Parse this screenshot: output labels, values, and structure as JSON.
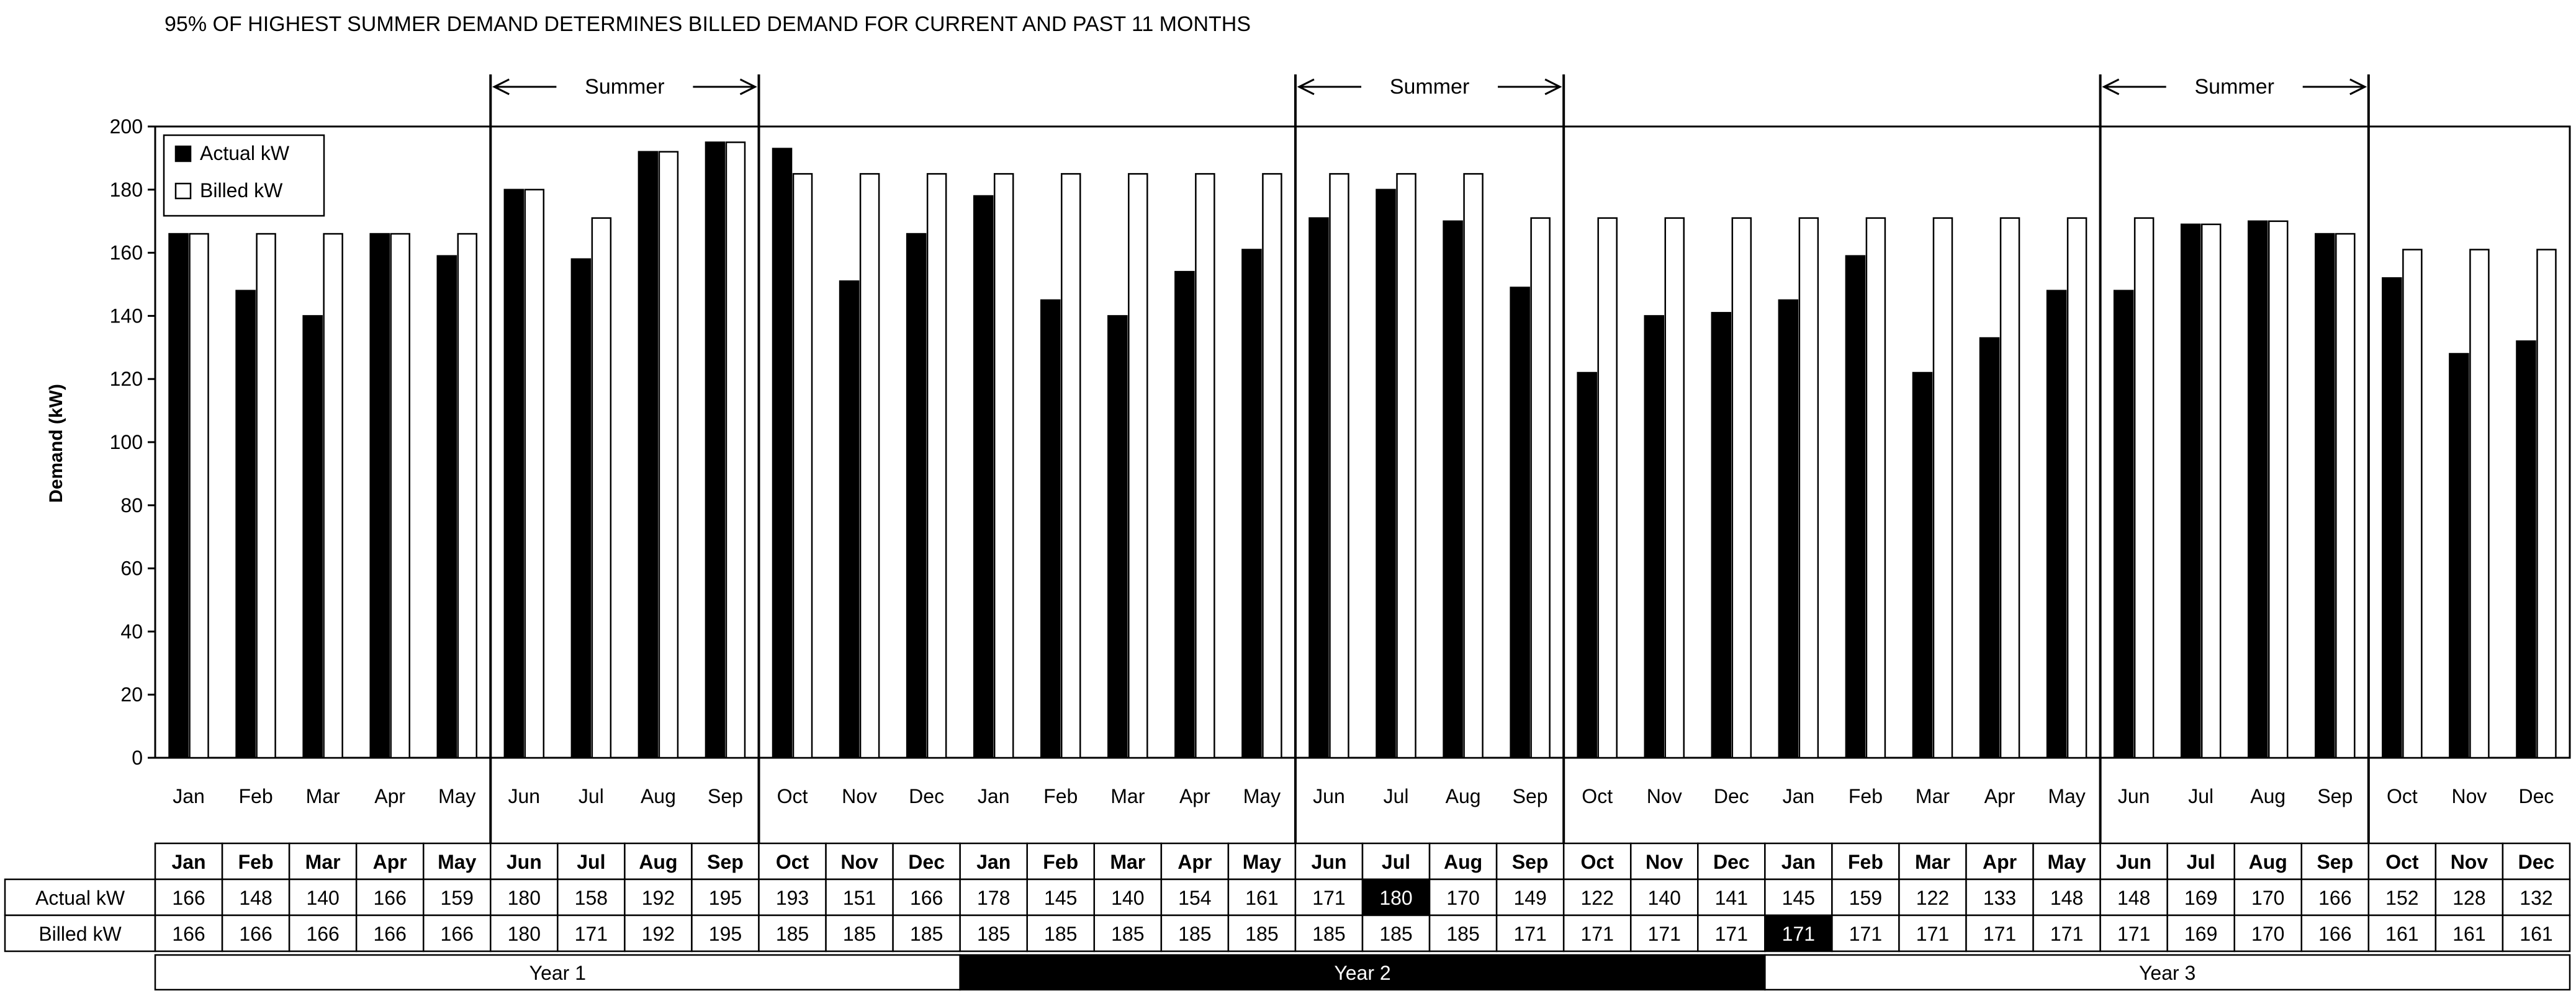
{
  "chart_data": {
    "type": "bar",
    "title": "95% OF HIGHEST SUMMER DEMAND DETERMINES BILLED DEMAND FOR CURRENT AND PAST 11 MONTHS",
    "xlabel": "",
    "ylabel": "Demand (kW)",
    "ylim": [
      0,
      200
    ],
    "yticks": [
      0,
      20,
      40,
      60,
      80,
      100,
      120,
      140,
      160,
      180,
      200
    ],
    "categories": [
      "Jan",
      "Feb",
      "Mar",
      "Apr",
      "May",
      "Jun",
      "Jul",
      "Aug",
      "Sep",
      "Oct",
      "Nov",
      "Dec",
      "Jan",
      "Feb",
      "Mar",
      "Apr",
      "May",
      "Jun",
      "Jul",
      "Aug",
      "Sep",
      "Oct",
      "Nov",
      "Dec",
      "Jan",
      "Feb",
      "Mar",
      "Apr",
      "May",
      "Jun",
      "Jul",
      "Aug",
      "Sep",
      "Oct",
      "Nov",
      "Dec"
    ],
    "series": [
      {
        "name": "Actual kW",
        "color": "#000000",
        "values": [
          166,
          148,
          140,
          166,
          159,
          180,
          158,
          192,
          195,
          193,
          151,
          166,
          178,
          145,
          140,
          154,
          161,
          171,
          180,
          170,
          149,
          122,
          140,
          141,
          145,
          159,
          122,
          133,
          148,
          148,
          169,
          170,
          166,
          152,
          128,
          132
        ]
      },
      {
        "name": "Billed kW",
        "color": "#ffffff",
        "values": [
          166,
          166,
          166,
          166,
          166,
          180,
          171,
          192,
          195,
          185,
          185,
          185,
          185,
          185,
          185,
          185,
          185,
          185,
          185,
          185,
          171,
          171,
          171,
          171,
          171,
          171,
          171,
          171,
          171,
          171,
          169,
          170,
          166,
          161,
          161,
          161
        ]
      }
    ],
    "legend_position": "top-left",
    "summer_label": "Summer",
    "summer_ranges": [
      [
        5,
        8
      ],
      [
        17,
        20
      ],
      [
        29,
        32
      ]
    ],
    "table": {
      "row_labels": [
        "Actual kW",
        "Billed kW"
      ],
      "highlight_cells": [
        {
          "row": 0,
          "col": 18
        },
        {
          "row": 1,
          "col": 24
        }
      ]
    },
    "years": [
      {
        "label": "Year 1",
        "start": 0,
        "end": 11,
        "inverted": false
      },
      {
        "label": "Year 2",
        "start": 12,
        "end": 23,
        "inverted": true
      },
      {
        "label": "Year 3",
        "start": 24,
        "end": 35,
        "inverted": false
      }
    ]
  }
}
